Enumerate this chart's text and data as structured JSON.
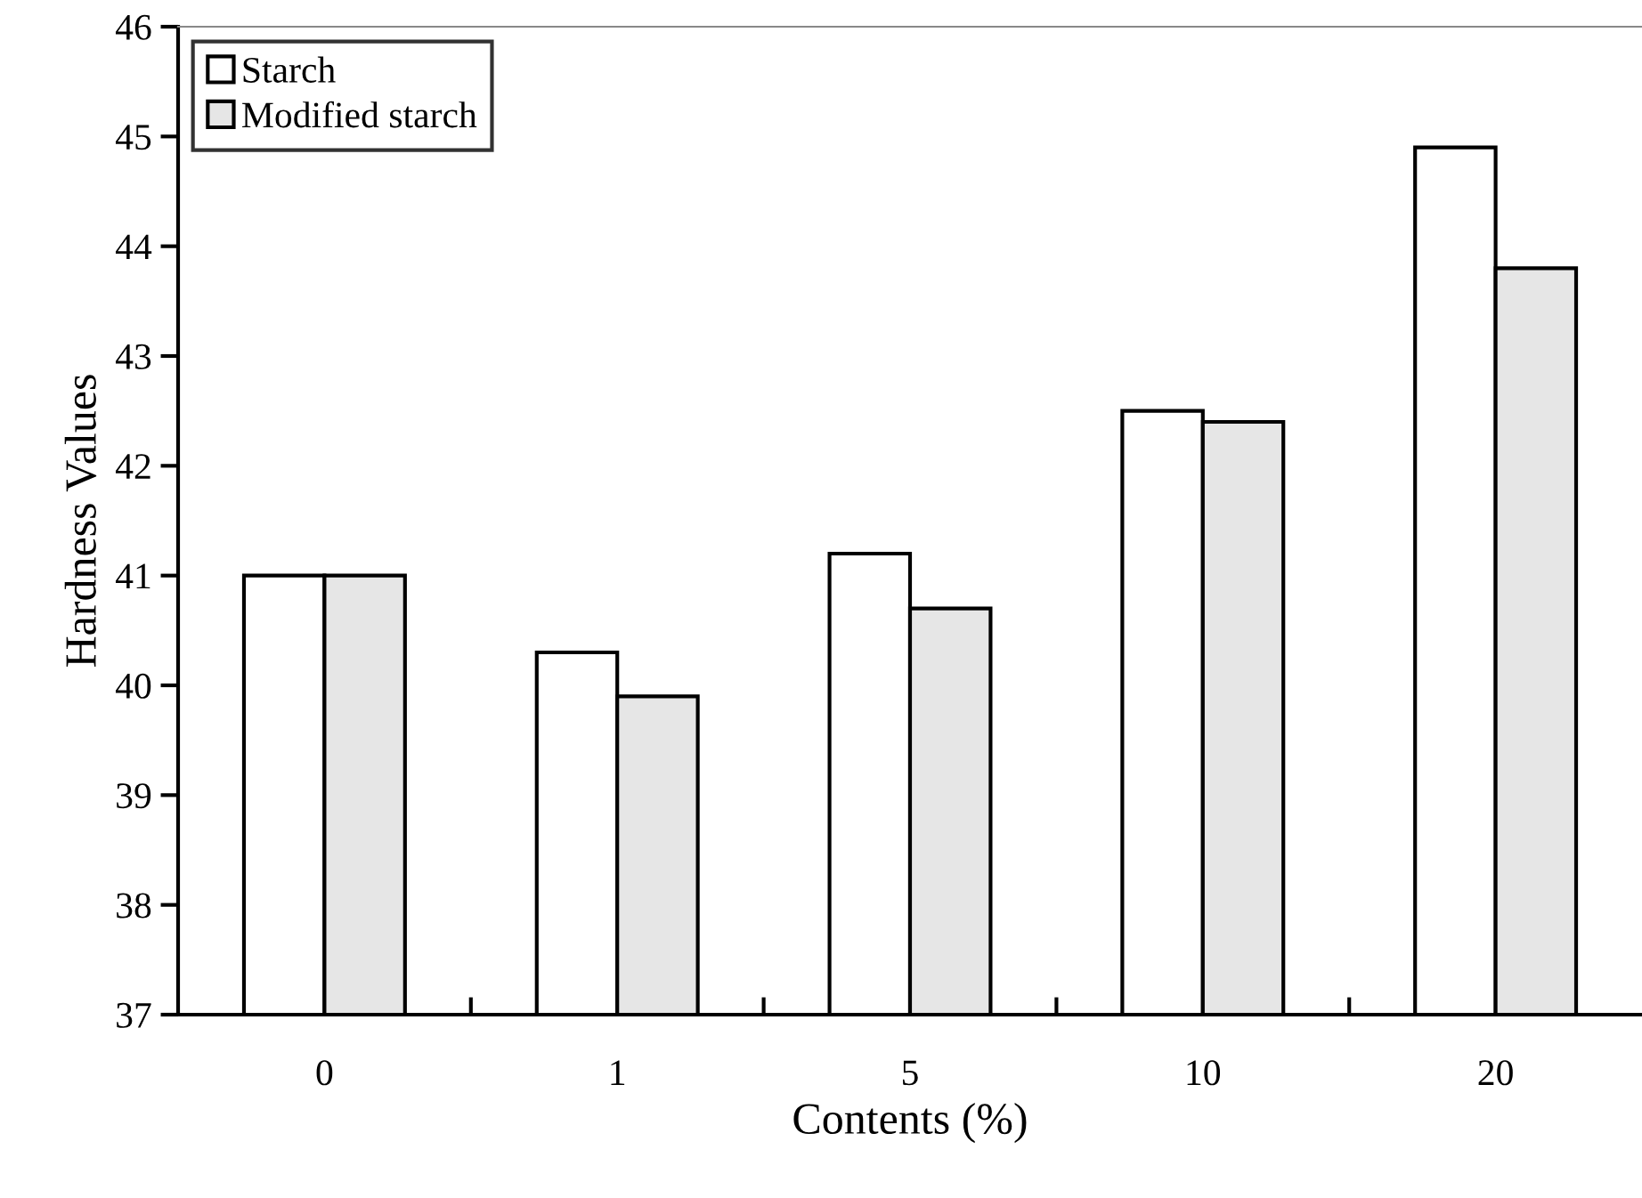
{
  "chart_data": {
    "type": "bar",
    "xlabel": "Contents (%)",
    "ylabel": "Hardness Values",
    "categories": [
      "0",
      "1",
      "5",
      "10",
      "20"
    ],
    "series": [
      {
        "name": "Starch",
        "color": "#ffffff",
        "values": [
          41.0,
          40.3,
          41.2,
          42.5,
          44.9
        ]
      },
      {
        "name": "Modified starch",
        "color": "#e6e6e6",
        "values": [
          41.0,
          39.9,
          40.7,
          42.4,
          43.8
        ]
      }
    ],
    "ylim": [
      37,
      46
    ],
    "yticks": [
      37,
      38,
      39,
      40,
      41,
      42,
      43,
      44,
      45,
      46
    ],
    "grid": false,
    "legend": "top left"
  }
}
